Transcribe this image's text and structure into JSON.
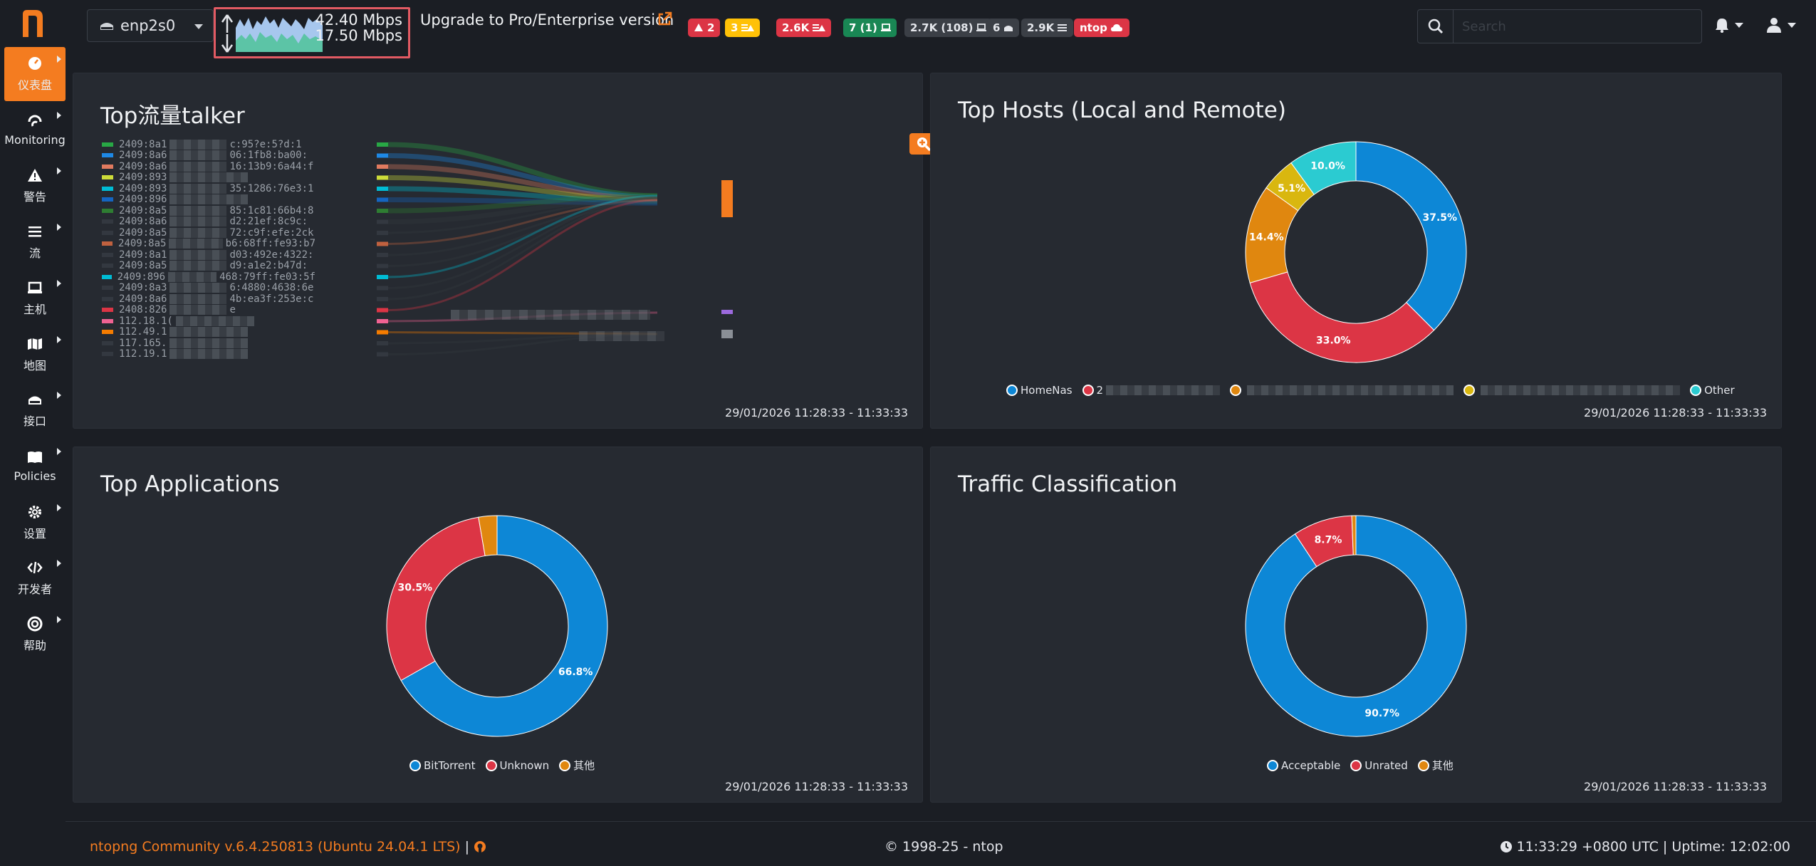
{
  "sidebar": {
    "items": [
      {
        "label": "仪表盘",
        "icon": "dashboard-icon",
        "active": true
      },
      {
        "label": "Monitoring",
        "icon": "monitoring-icon"
      },
      {
        "label": "警告",
        "icon": "alert-icon"
      },
      {
        "label": "流",
        "icon": "flows-icon"
      },
      {
        "label": "主机",
        "icon": "hosts-icon"
      },
      {
        "label": "地图",
        "icon": "map-icon"
      },
      {
        "label": "接口",
        "icon": "interface-icon"
      },
      {
        "label": "Policies",
        "icon": "policies-icon"
      },
      {
        "label": "设置",
        "icon": "settings-icon"
      },
      {
        "label": "开发者",
        "icon": "developer-icon"
      },
      {
        "label": "帮助",
        "icon": "help-icon"
      }
    ]
  },
  "header": {
    "interface": "enp2s0",
    "upload_rate": "42.40 Mbps",
    "download_rate": "17.50 Mbps",
    "upgrade_text": "Upgrade to Pro/Enterprise version",
    "badges": [
      {
        "text": "2",
        "icon": "warning-icon",
        "color": "#dc3545",
        "text_color": "#ffffff"
      },
      {
        "text": "3",
        "icon": "list-warning-icon",
        "color": "#ffc107",
        "text_color": "#ffffff"
      },
      {
        "text": "2.6K",
        "icon": "list-warning-icon",
        "color": "#dc3545",
        "text_color": "#ffffff"
      },
      {
        "text": "7 (1)",
        "icon": "laptop-icon",
        "color": "#198754",
        "text_color": "#ffffff"
      },
      {
        "text": "2.7K (108)",
        "icon": "laptop-icon",
        "color": "#3b3f46",
        "text_color": "#e4e6eb"
      },
      {
        "text": "6",
        "icon": "interface-icon",
        "color": "#3b3f46",
        "text_color": "#e4e6eb"
      },
      {
        "text": "2.9K",
        "icon": "list-icon",
        "color": "#3b3f46",
        "text_color": "#e4e6eb"
      },
      {
        "text": "ntop",
        "icon": "cloud-icon",
        "color": "#dc3545",
        "text_color": "#ffffff"
      }
    ],
    "search_placeholder": "Search"
  },
  "cards": {
    "top_talkers": {
      "title": "Top流量talker",
      "time": "29/01/2026 11:28:33 - 11:33:33",
      "rows": [
        {
          "label": "2409:8a1",
          "tail": "c:95?e:5?d:1",
          "color": "#28a745"
        },
        {
          "label": "2409:8a6",
          "tail": "06:1fb8:ba00:",
          "color": "#1e88e5"
        },
        {
          "label": "2409:8a6",
          "tail": "16:13b9:6a44:f",
          "color": "#e07a5f"
        },
        {
          "label": "2409:893",
          "tail": "",
          "color": "#cddc39"
        },
        {
          "label": "2409:893",
          "tail": "35:1286:76e3:1",
          "color": "#00bcd4"
        },
        {
          "label": "2409:896",
          "tail": "",
          "color": "#1565c0"
        },
        {
          "label": "2409:8a5",
          "tail": "85:1c81:66b4:8",
          "color": "#2e7d32"
        },
        {
          "label": "2409:8a6",
          "tail": "d2:21ef:8c9c:",
          "color": "#333840"
        },
        {
          "label": "2409:8a5",
          "tail": "72:c9f:efe:2ck",
          "color": "#333840"
        },
        {
          "label": "2409:8a5",
          "tail": "b6:68ff:fe93:b7",
          "color": "#c0613f"
        },
        {
          "label": "2409:8a1",
          "tail": "d03:492e:4322:",
          "color": "#333840"
        },
        {
          "label": "2409:8a5",
          "tail": "d9:a1e2:b47d:",
          "color": "#333840"
        },
        {
          "label": "2409:896",
          "tail": "468:79ff:fe03:5f",
          "color": "#00bcd4"
        },
        {
          "label": "2409:8a3",
          "tail": "6:4880:4638:6e",
          "color": "#333840"
        },
        {
          "label": "2409:8a6",
          "tail": "4b:ea3f:253e:c",
          "color": "#333840"
        },
        {
          "label": "2408:826",
          "tail": "e",
          "color": "#dc3545"
        },
        {
          "label": "112.18.1(",
          "tail": "",
          "color": "#f06292"
        },
        {
          "label": "112.49.1",
          "tail": "",
          "color": "#f57c00"
        },
        {
          "label": "117.165.",
          "tail": "",
          "color": "#333840"
        },
        {
          "label": "112.19.1",
          "tail": "",
          "color": "#333840"
        }
      ]
    },
    "top_hosts": {
      "title": "Top Hosts (Local and Remote)",
      "time": "29/01/2026 11:28:33 - 11:33:33",
      "legend": [
        {
          "label": "HomeNas",
          "color": "#0d87d6"
        },
        {
          "label": "2",
          "color": "#dc3545"
        },
        {
          "label": "",
          "color": "#e0870f"
        },
        {
          "label": "",
          "color": "#d9b70f"
        },
        {
          "label": "Other",
          "color": "#2bcbd1"
        }
      ],
      "slices": [
        {
          "label": "37.5%",
          "value": 37.5,
          "color": "#0d87d6"
        },
        {
          "label": "33.0%",
          "value": 33.0,
          "color": "#dc3545"
        },
        {
          "label": "14.4%",
          "value": 14.4,
          "color": "#e0870f"
        },
        {
          "label": "5.1%",
          "value": 5.1,
          "color": "#d9b70f"
        },
        {
          "label": "10.0%",
          "value": 10.0,
          "color": "#2bcbd1"
        }
      ]
    },
    "top_apps": {
      "title": "Top Applications",
      "time": "29/01/2026 11:28:33 - 11:33:33",
      "legend": [
        {
          "label": "BitTorrent",
          "color": "#0d87d6"
        },
        {
          "label": "Unknown",
          "color": "#dc3545"
        },
        {
          "label": "其他",
          "color": "#e0870f"
        }
      ],
      "slices": [
        {
          "label": "66.8%",
          "value": 66.8,
          "color": "#0d87d6"
        },
        {
          "label": "30.5%",
          "value": 30.5,
          "color": "#dc3545"
        },
        {
          "label": "",
          "value": 2.7,
          "color": "#e0870f"
        }
      ]
    },
    "traffic_class": {
      "title": "Traffic Classification",
      "time": "29/01/2026 11:28:33 - 11:33:33",
      "legend": [
        {
          "label": "Acceptable",
          "color": "#0d87d6"
        },
        {
          "label": "Unrated",
          "color": "#dc3545"
        },
        {
          "label": "其他",
          "color": "#e0870f"
        }
      ],
      "slices": [
        {
          "label": "90.7%",
          "value": 90.7,
          "color": "#0d87d6"
        },
        {
          "label": "8.7%",
          "value": 8.7,
          "color": "#dc3545"
        },
        {
          "label": "",
          "value": 0.6,
          "color": "#e0870f"
        }
      ]
    }
  },
  "footer": {
    "version": "ntopng Community v.6.4.250813 (Ubuntu 24.04.1 LTS)",
    "separator": "|",
    "copyright": "© 1998-25 - ntop",
    "status": "11:33:29 +0800 UTC | Uptime: 12:02:00"
  },
  "accent_color": "#f47c20"
}
